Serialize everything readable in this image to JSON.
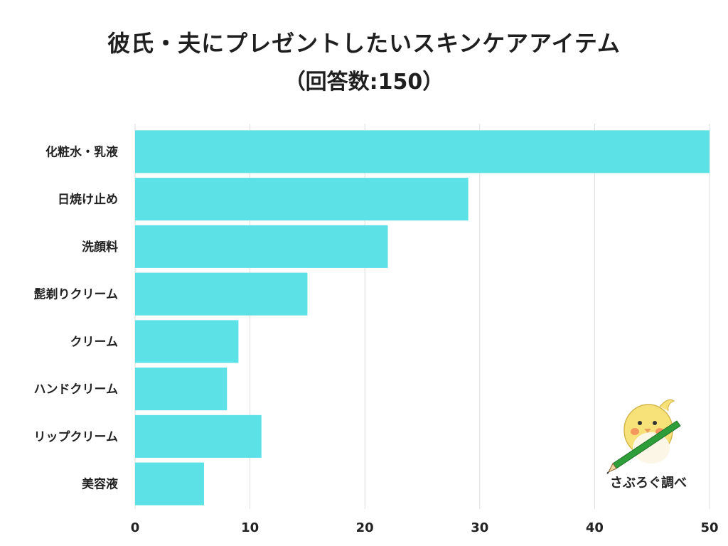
{
  "title": {
    "line1": "彼氏・夫にプレゼントしたいスキンケアアイテム",
    "line2": "（回答数:150）"
  },
  "credit": {
    "label": "さぶろぐ調べ",
    "mascot_icon": "bird-with-pencil-icon"
  },
  "colors": {
    "bar": "#5ce1e6",
    "grid": "#dddddd",
    "text": "#222222"
  },
  "chart_data": {
    "type": "bar",
    "orientation": "horizontal",
    "categories": [
      "化粧水・乳液",
      "日焼け止め",
      "洗顔料",
      "髭剃りクリーム",
      "クリーム",
      "ハンドクリーム",
      "リップクリーム",
      "美容液"
    ],
    "values": [
      50,
      29,
      22,
      15,
      9,
      8,
      11,
      6
    ],
    "xlim": [
      0,
      50
    ],
    "xticks": [
      0,
      10,
      20,
      30,
      40,
      50
    ],
    "grid": "vertical"
  }
}
